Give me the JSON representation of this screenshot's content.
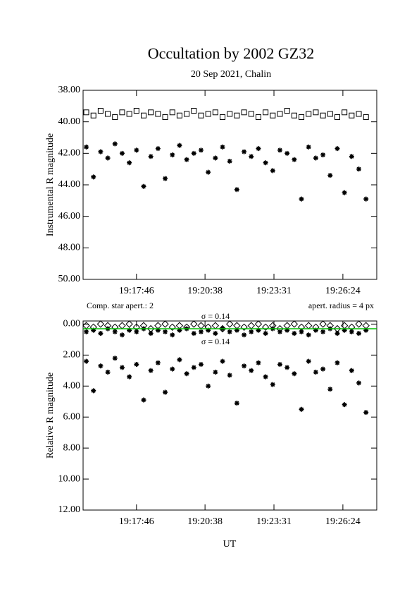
{
  "chart_data": [
    {
      "type": "scatter",
      "title": "Occultation by 2002 GZ32",
      "subtitle": "20 Sep 2021, Chalin",
      "ylabel": "Instrumental R magnitude",
      "xlim": [
        69332,
        70069
      ],
      "xticks": [
        {
          "value": 69466,
          "label": "19:17:46"
        },
        {
          "value": 69638,
          "label": "19:20:38"
        },
        {
          "value": 69811,
          "label": "19:23:31"
        },
        {
          "value": 69984,
          "label": "19:26:24"
        }
      ],
      "ylim": [
        38,
        50
      ],
      "y_inverted": true,
      "yticks": [
        {
          "value": 38,
          "label": "38.00"
        },
        {
          "value": 40,
          "label": "40.00"
        },
        {
          "value": 42,
          "label": "42.00"
        },
        {
          "value": 44,
          "label": "44.00"
        },
        {
          "value": 46,
          "label": "46.00"
        },
        {
          "value": 48,
          "label": "48.00"
        },
        {
          "value": 50,
          "label": "50.00"
        }
      ],
      "x": [
        69340,
        69358,
        69376,
        69394,
        69412,
        69430,
        69448,
        69466,
        69484,
        69502,
        69520,
        69538,
        69556,
        69574,
        69592,
        69610,
        69628,
        69646,
        69664,
        69682,
        69700,
        69718,
        69736,
        69754,
        69772,
        69790,
        69808,
        69826,
        69844,
        69862,
        69880,
        69898,
        69916,
        69934,
        69952,
        69970,
        69988,
        70006,
        70024,
        70042
      ],
      "series": [
        {
          "marker": "square",
          "color": "#000000",
          "values": [
            39.4,
            39.6,
            39.3,
            39.5,
            39.7,
            39.4,
            39.5,
            39.3,
            39.6,
            39.4,
            39.5,
            39.7,
            39.4,
            39.6,
            39.5,
            39.3,
            39.6,
            39.5,
            39.4,
            39.7,
            39.5,
            39.6,
            39.4,
            39.5,
            39.7,
            39.4,
            39.6,
            39.5,
            39.3,
            39.6,
            39.7,
            39.5,
            39.4,
            39.6,
            39.5,
            39.7,
            39.4,
            39.6,
            39.5,
            39.7
          ]
        },
        {
          "marker": "asterisk",
          "color": "#000000",
          "values": [
            41.6,
            43.5,
            41.9,
            42.3,
            41.4,
            42.0,
            42.6,
            41.8,
            44.1,
            42.2,
            41.7,
            43.6,
            42.1,
            41.5,
            42.4,
            42.0,
            41.8,
            43.2,
            42.3,
            41.6,
            42.5,
            44.3,
            41.9,
            42.2,
            41.7,
            42.6,
            43.1,
            41.8,
            42.0,
            42.4,
            44.9,
            41.6,
            42.3,
            42.1,
            43.4,
            41.7,
            44.5,
            42.2,
            43.0,
            44.9
          ]
        }
      ]
    },
    {
      "type": "scatter",
      "ylabel": "Relative R magnitude",
      "xlabel": "UT",
      "annotations": [
        "Comp. star apert.: 2",
        "apert. radius = 4 px",
        "σ = 0.14",
        "σ = 0.14"
      ],
      "xlim": [
        69332,
        70069
      ],
      "xticks": [
        {
          "value": 69466,
          "label": "19:17:46"
        },
        {
          "value": 69638,
          "label": "19:20:38"
        },
        {
          "value": 69811,
          "label": "19:23:31"
        },
        {
          "value": 69984,
          "label": "19:26:24"
        }
      ],
      "ylim": [
        -0.2,
        12
      ],
      "y_inverted": true,
      "yticks": [
        {
          "value": 0,
          "label": "0.00"
        },
        {
          "value": 2,
          "label": "2.00"
        },
        {
          "value": 4,
          "label": "4.00"
        },
        {
          "value": 6,
          "label": "6.00"
        },
        {
          "value": 8,
          "label": "8.00"
        },
        {
          "value": 10,
          "label": "10.00"
        },
        {
          "value": 12,
          "label": "12.00"
        }
      ],
      "reference_line": {
        "value": 0.3,
        "color": "#00c000"
      },
      "x": [
        69340,
        69358,
        69376,
        69394,
        69412,
        69430,
        69448,
        69466,
        69484,
        69502,
        69520,
        69538,
        69556,
        69574,
        69592,
        69610,
        69628,
        69646,
        69664,
        69682,
        69700,
        69718,
        69736,
        69754,
        69772,
        69790,
        69808,
        69826,
        69844,
        69862,
        69880,
        69898,
        69916,
        69934,
        69952,
        69970,
        69988,
        70006,
        70024,
        70042
      ],
      "series": [
        {
          "marker": "diamond",
          "color": "#000000",
          "values": [
            0.1,
            0.2,
            0.0,
            0.1,
            0.2,
            0.1,
            0.0,
            0.2,
            0.1,
            0.3,
            0.1,
            0.0,
            0.2,
            0.1,
            0.2,
            0.0,
            0.1,
            0.2,
            0.1,
            0.3,
            0.0,
            0.1,
            0.2,
            0.1,
            0.0,
            0.2,
            0.1,
            0.3,
            0.1,
            0.0,
            0.2,
            0.1,
            0.2,
            0.0,
            0.1,
            0.3,
            0.1,
            0.2,
            0.0,
            0.1
          ]
        },
        {
          "marker": "asterisk",
          "color": "#000000",
          "values": [
            0.5,
            0.4,
            0.6,
            0.3,
            0.5,
            0.7,
            0.4,
            0.5,
            0.3,
            0.6,
            0.4,
            0.5,
            0.7,
            0.4,
            0.3,
            0.6,
            0.5,
            0.4,
            0.6,
            0.3,
            0.5,
            0.4,
            0.7,
            0.5,
            0.4,
            0.6,
            0.3,
            0.5,
            0.4,
            0.6,
            0.5,
            0.7,
            0.4,
            0.5,
            0.3,
            0.6,
            0.4,
            0.5,
            0.6,
            0.4
          ]
        },
        {
          "marker": "asterisk",
          "color": "#000000",
          "values": [
            2.4,
            4.3,
            2.7,
            3.1,
            2.2,
            2.8,
            3.4,
            2.6,
            4.9,
            3.0,
            2.5,
            4.4,
            2.9,
            2.3,
            3.2,
            2.8,
            2.6,
            4.0,
            3.1,
            2.4,
            3.3,
            5.1,
            2.7,
            3.0,
            2.5,
            3.4,
            3.9,
            2.6,
            2.8,
            3.2,
            5.5,
            2.4,
            3.1,
            2.9,
            4.2,
            2.5,
            5.2,
            3.0,
            3.8,
            5.7
          ]
        }
      ]
    }
  ]
}
